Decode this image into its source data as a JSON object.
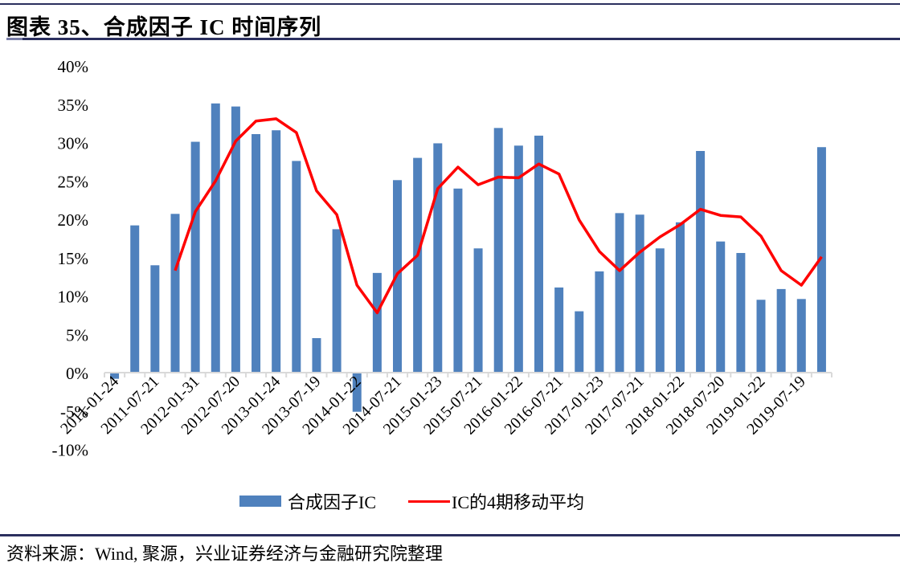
{
  "header": {
    "title": "图表 35、合成因子 IC 时间序列"
  },
  "footer": {
    "source": "资料来源：Wind, 聚源，兴业证券经济与金融研究院整理"
  },
  "colors": {
    "bar": "#4f81bd",
    "line": "#ff0000",
    "axis": "#d9d9d9",
    "rule": "#2b2f5e"
  },
  "chart_data": {
    "type": "bar",
    "title": "合成因子 IC 时间序列",
    "xlabel": "",
    "ylabel": "",
    "ylim": [
      -0.1,
      0.4
    ],
    "yticks": [
      "-10%",
      "-5%",
      "0%",
      "5%",
      "10%",
      "15%",
      "20%",
      "25%",
      "30%",
      "35%",
      "40%"
    ],
    "grid": false,
    "legend_position": "bottom",
    "x_tick_labels": [
      "2011-01-24",
      "2011-07-21",
      "2012-01-31",
      "2012-07-20",
      "2013-01-24",
      "2013-07-19",
      "2014-01-22",
      "2014-07-21",
      "2015-01-23",
      "2015-07-21",
      "2016-01-22",
      "2016-07-21",
      "2017-01-23",
      "2017-07-21",
      "2018-01-22",
      "2018-07-20",
      "2019-01-22",
      "2019-07-19"
    ],
    "x_tick_every": 2,
    "n_periods": 36,
    "series": [
      {
        "name": "合成因子IC",
        "type": "bar",
        "color": "#4f81bd",
        "values": [
          -0.008,
          0.192,
          0.14,
          0.207,
          0.301,
          0.351,
          0.347,
          0.311,
          0.316,
          0.276,
          0.045,
          0.187,
          -0.051,
          0.13,
          0.251,
          0.28,
          0.299,
          0.24,
          0.162,
          0.319,
          0.296,
          0.309,
          0.111,
          0.08,
          0.132,
          0.208,
          0.206,
          0.162,
          0.196,
          0.289,
          0.171,
          0.156,
          0.095,
          0.109,
          0.096,
          0.294
        ]
      },
      {
        "name": "IC的4期移动平均",
        "type": "line",
        "color": "#ff0000",
        "window": 4,
        "values": [
          null,
          null,
          null,
          0.133,
          0.21,
          0.25,
          0.302,
          0.328,
          0.331,
          0.313,
          0.237,
          0.206,
          0.114,
          0.078,
          0.129,
          0.153,
          0.24,
          0.268,
          0.245,
          0.255,
          0.254,
          0.272,
          0.259,
          0.199,
          0.158,
          0.133,
          0.157,
          0.177,
          0.193,
          0.213,
          0.205,
          0.203,
          0.178,
          0.133,
          0.114,
          0.151
        ]
      }
    ]
  }
}
